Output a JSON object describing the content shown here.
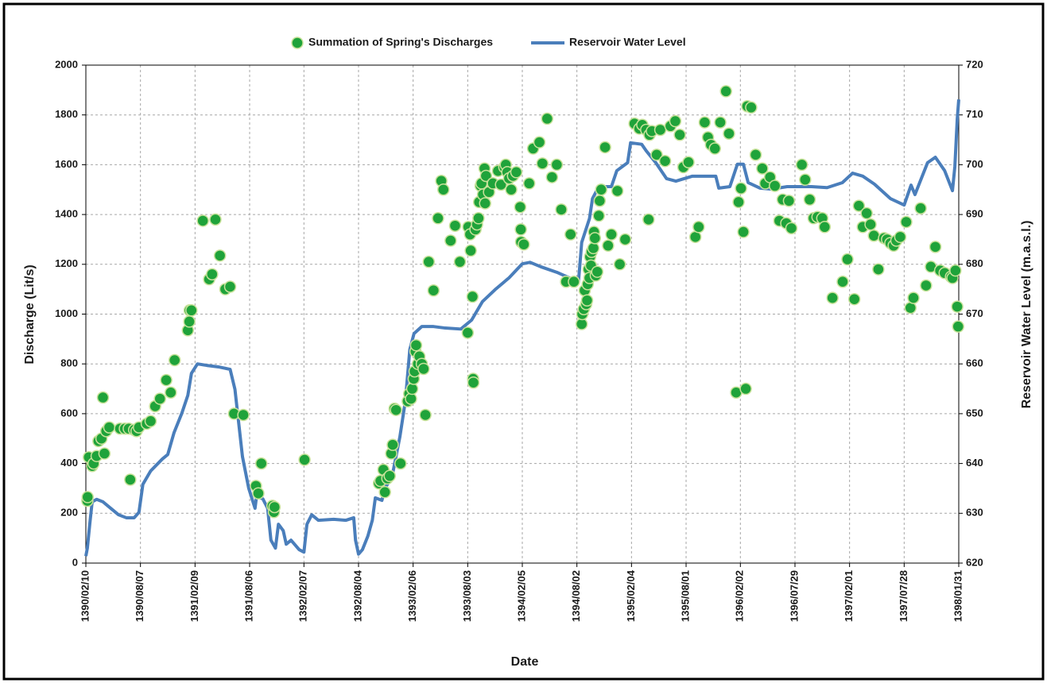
{
  "chart_data": {
    "type": "scatter",
    "x_label": "Date",
    "y_label": "Discharge (Lit/s)",
    "y2_label": "Reservoir Water Level (m.a.s.l.)",
    "xlim": [
      "1390/02/10",
      "1398/01/31"
    ],
    "xticks": [
      "1390/02/10",
      "1390/08/07",
      "1391/02/09",
      "1391/08/06",
      "1392/02/07",
      "1392/08/04",
      "1393/02/06",
      "1393/08/03",
      "1394/02/05",
      "1394/08/02",
      "1395/02/04",
      "1395/08/01",
      "1396/02/02",
      "1396/07/29",
      "1397/02/01",
      "1397/07/28",
      "1398/01/31"
    ],
    "ylim": [
      0,
      2000
    ],
    "yticks": [
      0,
      200,
      400,
      600,
      800,
      1000,
      1200,
      1400,
      1600,
      1800,
      2000
    ],
    "y2lim": [
      620,
      720
    ],
    "y2ticks": [
      620,
      630,
      640,
      650,
      660,
      670,
      680,
      690,
      700,
      710,
      720
    ],
    "grid": true,
    "legend": "top",
    "series": [
      {
        "name": "Summation of Spring's Discharges",
        "type": "scatter",
        "color": "#1fa33a",
        "x": [
          "1390/02/15",
          "1390/02/16",
          "1390/02/20",
          "1390/02/31",
          "1390/03/05",
          "1390/03/15",
          "1390/03/21",
          "1390/03/31",
          "1390/04/05",
          "1390/04/10",
          "1390/04/16",
          "1390/04/26",
          "1390/05/31",
          "1390/06/16",
          "1390/06/29",
          "1390/07/03",
          "1390/07/16",
          "1390/07/24",
          "1390/08/02",
          "1390/08/28",
          "1390/09/11",
          "1390/09/26",
          "1390/10/12",
          "1390/11/03",
          "1390/11/18",
          "1390/12/01",
          "1391/01/16",
          "1391/01/21",
          "1391/01/22",
          "1391/01/28",
          "1391/03/04",
          "1391/03/25",
          "1391/04/04",
          "1391/04/15",
          "1391/04/30",
          "1391/05/17",
          "1391/06/02",
          "1391/06/15",
          "1391/07/15",
          "1391/08/27",
          "1391/09/05",
          "1391/09/15",
          "1391/10/22",
          "1391/10/27",
          "1391/10/29",
          "1392/02/09",
          "1392/10/12",
          "1392/10/17",
          "1392/10/27",
          "1392/11/02",
          "1392/11/10",
          "1392/11/18",
          "1392/11/23",
          "1392/11/28",
          "1392/12/04",
          "1392/12/09",
          "1392/12/24",
          "1393/01/19",
          "1393/01/24",
          "1393/01/30",
          "1393/02/03",
          "1393/02/08",
          "1393/02/11",
          "1393/02/14",
          "1393/02/16",
          "1393/02/22",
          "1393/02/27",
          "1393/03/04",
          "1393/03/10",
          "1393/03/16",
          "1393/03/27",
          "1393/04/12",
          "1393/04/27",
          "1393/05/07",
          "1393/05/14",
          "1393/06/07",
          "1393/06/22",
          "1393/07/07",
          "1393/08/03",
          "1393/08/05",
          "1393/08/11",
          "1393/08/13",
          "1393/08/19",
          "1393/08/21",
          "1393/08/22",
          "1393/08/29",
          "1393/09/04",
          "1393/09/09",
          "1393/09/11",
          "1393/09/16",
          "1393/09/19",
          "1393/09/24",
          "1393/09/29",
          "1393/10/01",
          "1393/10/04",
          "1393/10/14",
          "1393/10/27",
          "1393/11/14",
          "1393/11/24",
          "1393/12/05",
          "1393/12/10",
          "1393/12/15",
          "1393/12/21",
          "1393/12/28",
          "1394/01/05",
          "1394/01/16",
          "1394/01/29",
          "1394/01/31",
          "1394/02/01",
          "1394/02/10",
          "1394/02/28",
          "1394/03/10",
          "1394/03/31",
          "1394/04/10",
          "1394/04/26",
          "1394/05/11",
          "1394/05/27",
          "1394/06/11",
          "1394/06/27",
          "1394/07/11",
          "1394/07/22",
          "1394/08/18",
          "1394/08/20",
          "1394/08/25",
          "1394/08/28",
          "1394/09/03",
          "1394/09/06",
          "1394/09/08",
          "1394/09/11",
          "1394/09/14",
          "1394/09/16",
          "1394/09/19",
          "1394/09/21",
          "1394/09/27",
          "1394/09/29",
          "1394/10/02",
          "1394/10/05",
          "1394/10/10",
          "1394/10/15",
          "1394/10/18",
          "1394/10/23",
          "1394/11/06",
          "1394/11/16",
          "1394/11/27",
          "1394/12/17",
          "1394/12/25",
          "1395/01/14",
          "1395/02/14",
          "1395/02/30",
          "1395/03/09",
          "1395/03/22",
          "1395/03/30",
          "1395/04/02",
          "1395/04/10",
          "1395/04/26",
          "1395/05/07",
          "1395/05/23",
          "1395/06/10",
          "1395/06/26",
          "1395/07/10",
          "1395/07/22",
          "1395/08/09",
          "1395/09/02",
          "1395/09/13",
          "1395/10/03",
          "1395/10/14",
          "1395/10/24",
          "1395/11/07",
          "1395/11/25",
          "1395/12/14",
          "1395/12/24",
          "1396/01/19",
          "1396/01/27",
          "1396/02/04",
          "1396/02/12",
          "1396/02/20",
          "1396/02/25",
          "1396/03/07",
          "1396/03/22",
          "1396/04/13",
          "1396/04/23",
          "1396/05/08",
          "1396/05/24",
          "1396/06/08",
          "1396/06/19",
          "1396/06/31",
          "1396/07/09",
          "1396/07/17",
          "1396/08/22",
          "1396/09/03",
          "1396/09/18",
          "1396/10/01",
          "1396/10/14",
          "1396/10/30",
          "1396/11/08",
          "1396/12/04",
          "1397/01/09",
          "1397/01/25",
          "1397/02/17",
          "1397/03/01",
          "1397/03/14",
          "1397/03/27",
          "1397/04/09",
          "1397/04/20",
          "1397/05/04",
          "1397/05/23",
          "1397/06/02",
          "1397/06/13",
          "1397/06/24",
          "1397/07/02",
          "1397/07/15",
          "1397/08/05",
          "1397/08/19",
          "1397/08/29",
          "1397/09/23",
          "1397/10/11",
          "1397/10/27",
          "1397/11/12",
          "1397/11/28",
          "1397/12/13",
          "1398/01/05",
          "1398/01/10",
          "1398/01/20",
          "1398/01/26",
          "1398/01/29"
        ],
        "values": [
          250,
          265,
          425,
          390,
          400,
          430,
          490,
          500,
          665,
          440,
          530,
          545,
          540,
          540,
          540,
          335,
          535,
          530,
          545,
          560,
          570,
          630,
          660,
          735,
          685,
          815,
          935,
          970,
          1015,
          1015,
          1375,
          1140,
          1160,
          1380,
          1235,
          1100,
          1110,
          600,
          595,
          310,
          280,
          400,
          230,
          205,
          225,
          415,
          320,
          330,
          375,
          285,
          340,
          350,
          440,
          475,
          620,
          615,
          400,
          650,
          680,
          660,
          700,
          740,
          770,
          850,
          875,
          800,
          830,
          800,
          780,
          595,
          1210,
          1095,
          1385,
          1535,
          1500,
          1295,
          1355,
          1210,
          925,
          1350,
          1320,
          1255,
          1070,
          740,
          725,
          1340,
          1360,
          1385,
          1450,
          1515,
          1525,
          1480,
          1585,
          1445,
          1555,
          1490,
          1525,
          1575,
          1520,
          1590,
          1600,
          1570,
          1545,
          1500,
          1555,
          1570,
          1430,
          1340,
          1290,
          1280,
          1525,
          1665,
          1690,
          1605,
          1785,
          1550,
          1600,
          1420,
          1130,
          1320,
          1130,
          960,
          1000,
          1020,
          1095,
          1040,
          1055,
          1120,
          1180,
          1145,
          1230,
          1195,
          1250,
          1265,
          1330,
          1305,
          1155,
          1170,
          1395,
          1455,
          1500,
          1670,
          1275,
          1320,
          1495,
          1200,
          1300,
          1765,
          1745,
          1760,
          1740,
          1380,
          1720,
          1735,
          1640,
          1740,
          1615,
          1755,
          1775,
          1720,
          1590,
          1610,
          1310,
          1350,
          1770,
          1710,
          1680,
          1665,
          1770,
          1895,
          1725,
          685,
          1450,
          1505,
          1330,
          700,
          1835,
          1830,
          1640,
          1585,
          1525,
          1550,
          1515,
          1375,
          1460,
          1365,
          1455,
          1345,
          1600,
          1540,
          1460,
          1385,
          1390,
          1385,
          1350,
          1065,
          1130,
          1220,
          1060,
          1435,
          1350,
          1405,
          1360,
          1315,
          1180,
          1305,
          1300,
          1285,
          1275,
          1295,
          1310,
          1370,
          1025,
          1065,
          1425,
          1115,
          1190,
          1270,
          1175,
          1165,
          1150,
          1145,
          1175,
          1030,
          950
        ]
      },
      {
        "name": "Reservoir Water Level",
        "type": "line",
        "axis": "y2",
        "color": "#4a7ebb",
        "x": [
          "1390/02/10",
          "1390/02/15",
          "1390/02/23",
          "1390/02/31",
          "1390/03/15",
          "1390/04/05",
          "1390/04/31",
          "1390/05/26",
          "1390/06/21",
          "1390/07/16",
          "1390/08/02",
          "1390/08/15",
          "1390/09/11",
          "1390/10/20",
          "1390/11/08",
          "1390/11/29",
          "1390/12/25",
          "1391/01/16",
          "1391/01/28",
          "1391/02/17",
          "1391/03/17",
          "1391/04/25",
          "1391/06/02",
          "1391/06/18",
          "1391/07/12",
          "1391/08/03",
          "1391/08/24",
          "1391/08/29",
          "1391/09/20",
          "1391/10/06",
          "1391/10/17",
          "1391/11/02",
          "1391/11/12",
          "1391/11/28",
          "1391/12/08",
          "1391/12/24",
          "1392/01/22",
          "1392/02/07",
          "1392/02/17",
          "1392/03/02",
          "1392/03/24",
          "1392/05/13",
          "1392/06/23",
          "1392/07/18",
          "1392/07/24",
          "1392/08/04",
          "1392/08/17",
          "1392/09/05",
          "1392/09/20",
          "1392/09/30",
          "1392/10/22",
          "1392/11/02",
          "1392/11/26",
          "1392/12/22",
          "1393/01/11",
          "1393/01/26",
          "1393/02/09",
          "1393/03/04",
          "1393/04/12",
          "1393/05/20",
          "1393/07/10",
          "1393/08/16",
          "1393/09/22",
          "1393/11/04",
          "1393/12/21",
          "1394/02/05",
          "1394/02/31",
          "1394/04/05",
          "1394/05/27",
          "1394/07/06",
          "1394/08/07",
          "1394/08/18",
          "1394/09/14",
          "1394/09/24",
          "1394/10/15",
          "1394/11/27",
          "1394/12/15",
          "1395/01/04",
          "1395/01/22",
          "1395/02/01",
          "1395/03/07",
          "1395/03/22",
          "1395/04/23",
          "1395/05/28",
          "1395/06/28",
          "1395/08/22",
          "1395/11/10",
          "1395/11/20",
          "1395/12/27",
          "1396/01/23",
          "1396/02/12",
          "1396/02/28",
          "1396/04/05",
          "1396/05/13",
          "1396/07/03",
          "1396/08/02",
          "1396/09/24",
          "1396/11/16",
          "1397/01/08",
          "1397/02/11",
          "1397/03/14",
          "1397/04/22",
          "1397/06/13",
          "1397/07/28",
          "1397/08/21",
          "1397/09/04",
          "1397/10/16",
          "1397/11/12",
          "1397/12/13",
          "1398/01/10",
          "1398/01/18",
          "1398/01/26",
          "1398/01/31"
        ],
        "values": [
          621.4,
          623,
          627.8,
          632.3,
          632.8,
          632.3,
          631,
          629.7,
          629.1,
          629.1,
          630.2,
          635.8,
          638.5,
          640.9,
          641.8,
          646.2,
          650.1,
          653.7,
          658.1,
          660,
          659.7,
          659.4,
          658.9,
          654.9,
          641.4,
          635,
          631,
          633.4,
          632.9,
          631,
          624.6,
          623,
          627.8,
          626.5,
          623.8,
          624.6,
          622.7,
          622.2,
          627.8,
          629.7,
          628.6,
          628.8,
          628.6,
          629.1,
          624.6,
          621.8,
          622.7,
          625.4,
          628.6,
          633.1,
          632.6,
          635,
          637.4,
          645.4,
          652.5,
          662.9,
          666.1,
          667.5,
          667.5,
          667.2,
          667,
          668.8,
          672.5,
          674.9,
          677.3,
          680.1,
          680.4,
          679.5,
          678.4,
          677.3,
          676.3,
          684.4,
          689.2,
          693.2,
          695.6,
          695.6,
          698.8,
          699.6,
          700.4,
          704.4,
          704.1,
          702.8,
          700.4,
          697.2,
          696.7,
          697.7,
          697.7,
          695.3,
          695.6,
          700.1,
          700.1,
          696.4,
          695.3,
          695.1,
          695.6,
          695.6,
          695.6,
          695.4,
          696.4,
          698.3,
          697.7,
          696.1,
          693.2,
          691.9,
          695.9,
          694,
          700.4,
          701.5,
          698.8,
          694.8,
          699.6,
          709.2,
          713.1
        ]
      }
    ]
  }
}
